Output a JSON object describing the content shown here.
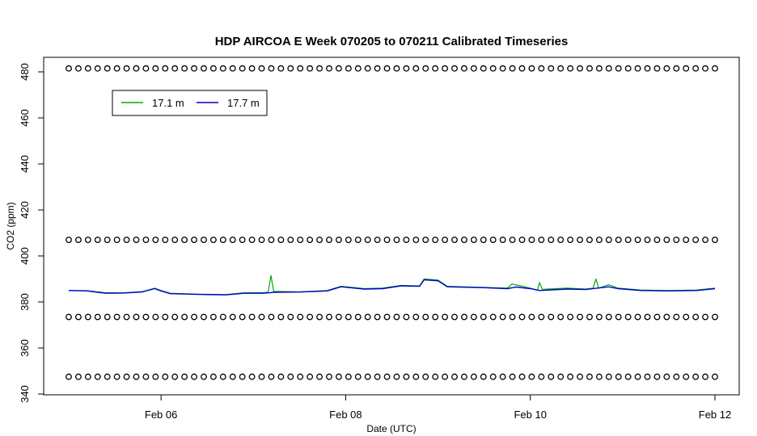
{
  "chart_data": {
    "type": "line",
    "title": "HDP AIRCOA E  Week 070205 to 070211  Calibrated Timeseries",
    "xlabel": "Date (UTC)",
    "ylabel": "CO2 (ppm)",
    "xlim": [
      5.0,
      12.0
    ],
    "ylim": [
      340,
      485
    ],
    "x_ticks": [
      {
        "value": 6,
        "label": "Feb 06"
      },
      {
        "value": 8,
        "label": "Feb 08"
      },
      {
        "value": 10,
        "label": "Feb 10"
      },
      {
        "value": 12,
        "label": "Feb 12"
      }
    ],
    "y_ticks": [
      340,
      360,
      380,
      400,
      420,
      440,
      460,
      480
    ],
    "legend": {
      "placement": "top-left",
      "entries": [
        {
          "label": "17.1 m",
          "color": "#00aa00"
        },
        {
          "label": "17.7 m",
          "color": "#0000cc"
        }
      ]
    },
    "series": [
      {
        "name": "17.1 m",
        "color": "#00aa00",
        "points": [
          [
            5.0,
            385.0
          ],
          [
            5.2,
            384.9
          ],
          [
            5.4,
            384.0
          ],
          [
            5.6,
            384.0
          ],
          [
            5.8,
            384.5
          ],
          [
            5.93,
            386.0
          ],
          [
            6.0,
            385.0
          ],
          [
            6.1,
            383.8
          ],
          [
            6.4,
            383.4
          ],
          [
            6.7,
            383.2
          ],
          [
            6.9,
            384.0
          ],
          [
            7.1,
            384.0
          ],
          [
            7.16,
            384.2
          ],
          [
            7.19,
            391.5
          ],
          [
            7.22,
            384.6
          ],
          [
            7.5,
            384.4
          ],
          [
            7.8,
            385.0
          ],
          [
            7.95,
            386.8
          ],
          [
            8.2,
            385.8
          ],
          [
            8.4,
            386.0
          ],
          [
            8.6,
            387.2
          ],
          [
            8.8,
            387.0
          ],
          [
            8.85,
            390.0
          ],
          [
            9.0,
            389.5
          ],
          [
            9.1,
            386.8
          ],
          [
            9.5,
            386.3
          ],
          [
            9.75,
            386.0
          ],
          [
            9.8,
            387.8
          ],
          [
            9.9,
            387.0
          ],
          [
            10.0,
            386.0
          ],
          [
            10.08,
            385.2
          ],
          [
            10.1,
            388.5
          ],
          [
            10.13,
            385.5
          ],
          [
            10.4,
            386.0
          ],
          [
            10.6,
            385.6
          ],
          [
            10.68,
            386.0
          ],
          [
            10.71,
            390.0
          ],
          [
            10.74,
            386.0
          ],
          [
            10.85,
            387.5
          ],
          [
            10.95,
            386.0
          ],
          [
            11.2,
            385.2
          ],
          [
            11.5,
            385.0
          ],
          [
            11.8,
            385.2
          ],
          [
            12.0,
            386.0
          ]
        ]
      },
      {
        "name": "17.7 m",
        "color": "#0000cc",
        "points": [
          [
            5.0,
            385.0
          ],
          [
            5.2,
            384.8
          ],
          [
            5.4,
            383.8
          ],
          [
            5.6,
            383.9
          ],
          [
            5.8,
            384.4
          ],
          [
            5.93,
            385.8
          ],
          [
            6.0,
            384.8
          ],
          [
            6.1,
            383.6
          ],
          [
            6.4,
            383.3
          ],
          [
            6.7,
            383.1
          ],
          [
            6.9,
            383.8
          ],
          [
            7.1,
            383.8
          ],
          [
            7.18,
            384.0
          ],
          [
            7.22,
            384.2
          ],
          [
            7.5,
            384.3
          ],
          [
            7.8,
            384.8
          ],
          [
            7.95,
            386.6
          ],
          [
            8.2,
            385.6
          ],
          [
            8.4,
            385.8
          ],
          [
            8.6,
            387.0
          ],
          [
            8.8,
            386.8
          ],
          [
            8.85,
            389.6
          ],
          [
            9.0,
            389.2
          ],
          [
            9.1,
            386.6
          ],
          [
            9.5,
            386.2
          ],
          [
            9.75,
            385.8
          ],
          [
            9.85,
            386.5
          ],
          [
            10.0,
            385.8
          ],
          [
            10.1,
            385.0
          ],
          [
            10.4,
            385.6
          ],
          [
            10.6,
            385.4
          ],
          [
            10.85,
            386.6
          ],
          [
            10.95,
            385.8
          ],
          [
            11.2,
            385.0
          ],
          [
            11.5,
            384.8
          ],
          [
            11.8,
            385.0
          ],
          [
            12.0,
            385.8
          ]
        ]
      }
    ],
    "marker_rows": [
      {
        "y": 481.5,
        "x_start": 5.0,
        "x_end": 12.0,
        "count": 68
      },
      {
        "y": 407.0,
        "x_start": 5.0,
        "x_end": 12.0,
        "count": 68
      },
      {
        "y": 373.5,
        "x_start": 5.0,
        "x_end": 12.0,
        "count": 68
      },
      {
        "y": 347.5,
        "x_start": 5.0,
        "x_end": 12.0,
        "count": 68
      }
    ],
    "grid": false
  }
}
